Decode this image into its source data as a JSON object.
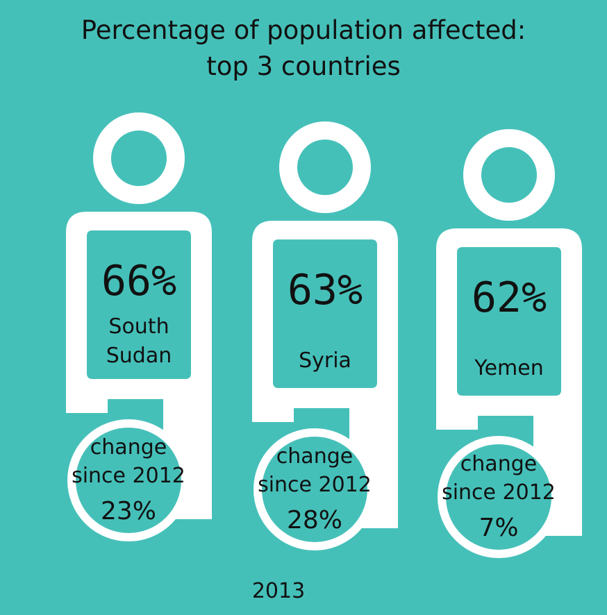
{
  "colors": {
    "background": "#45c0b9",
    "figure_outline": "#ffffff",
    "text": "#111111"
  },
  "icons": [
    "person-figure-icon"
  ],
  "chart_data": {
    "type": "infographic",
    "title_lines": [
      "Percentage of population affected:",
      "top 3 countries"
    ],
    "year": "2013",
    "categories": [
      [
        "South",
        "Sudan"
      ],
      [
        "Syria"
      ],
      [
        "Yemen"
      ]
    ],
    "values": [
      66,
      63,
      62
    ],
    "value_labels": [
      "66%",
      "63%",
      "62%"
    ],
    "change_caption": [
      "change",
      "since 2012"
    ],
    "change_values": [
      23,
      28,
      7
    ],
    "change_labels": [
      "23%",
      "28%",
      "7%"
    ]
  }
}
